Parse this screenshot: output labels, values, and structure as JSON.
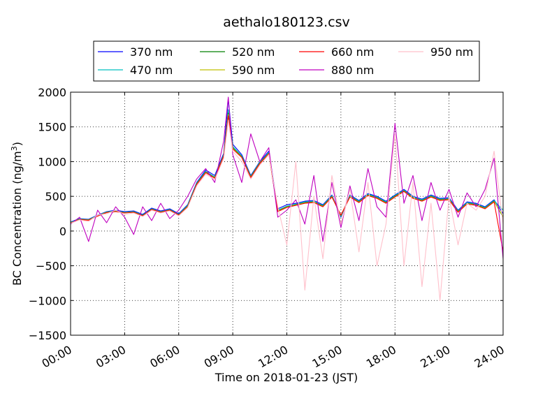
{
  "chart_data": {
    "type": "line",
    "title": "aethalo180123.csv",
    "xlabel": "Time on 2018-01-23 (JST)",
    "ylabel_main": "BC Concentration (ng/m",
    "ylabel_sup": "3",
    "ylabel_close": ")",
    "xlim_hours": [
      0,
      24
    ],
    "ylim": [
      -1500,
      2000
    ],
    "grid": true,
    "legend_position": "top-center, outside plot",
    "xticks": [
      {
        "hour": 0,
        "label": "00:00"
      },
      {
        "hour": 3,
        "label": "03:00"
      },
      {
        "hour": 6,
        "label": "06:00"
      },
      {
        "hour": 9,
        "label": "09:00"
      },
      {
        "hour": 12,
        "label": "12:00"
      },
      {
        "hour": 15,
        "label": "15:00"
      },
      {
        "hour": 18,
        "label": "18:00"
      },
      {
        "hour": 21,
        "label": "21:00"
      },
      {
        "hour": 24,
        "label": "24:00"
      }
    ],
    "yticks": [
      {
        "value": 2000,
        "label": "2000"
      },
      {
        "value": 1500,
        "label": "1500"
      },
      {
        "value": 1000,
        "label": "1000"
      },
      {
        "value": 500,
        "label": "500"
      },
      {
        "value": 0,
        "label": "0"
      },
      {
        "value": -500,
        "label": "−500"
      },
      {
        "value": -1000,
        "label": "−1000"
      },
      {
        "value": -1500,
        "label": "−1500"
      }
    ],
    "x_hours": [
      0,
      0.5,
      1,
      1.5,
      2,
      2.5,
      3,
      3.5,
      4,
      4.5,
      5,
      5.5,
      6,
      6.5,
      7,
      7.5,
      8,
      8.5,
      8.75,
      9,
      9.5,
      10,
      10.5,
      11,
      11.5,
      12,
      12.5,
      13,
      13.5,
      14,
      14.5,
      15,
      15.5,
      16,
      16.5,
      17,
      17.5,
      18,
      18.5,
      19,
      19.5,
      20,
      20.5,
      21,
      21.5,
      22,
      22.5,
      23,
      23.5,
      24
    ],
    "series": [
      {
        "name": "370 nm",
        "color": "#0000ff",
        "values": [
          130,
          180,
          170,
          230,
          280,
          300,
          280,
          290,
          240,
          330,
          290,
          320,
          250,
          380,
          700,
          880,
          800,
          1120,
          1900,
          1250,
          1100,
          800,
          1000,
          1150,
          320,
          380,
          400,
          430,
          440,
          380,
          520,
          200,
          520,
          440,
          540,
          500,
          430,
          520,
          600,
          500,
          460,
          520,
          470,
          480,
          300,
          420,
          400,
          350,
          450,
          250
        ]
      },
      {
        "name": "470 nm",
        "color": "#00bfbf",
        "values": [
          125,
          175,
          165,
          225,
          275,
          290,
          270,
          280,
          230,
          320,
          280,
          310,
          240,
          370,
          690,
          860,
          780,
          1100,
          1750,
          1220,
          1080,
          790,
          990,
          1130,
          300,
          360,
          390,
          420,
          430,
          370,
          510,
          210,
          510,
          430,
          530,
          490,
          420,
          510,
          590,
          490,
          450,
          510,
          460,
          470,
          290,
          410,
          390,
          340,
          440,
          300
        ]
      },
      {
        "name": "520 nm",
        "color": "#008000",
        "values": [
          120,
          170,
          160,
          220,
          270,
          285,
          265,
          275,
          225,
          315,
          275,
          305,
          235,
          360,
          680,
          850,
          770,
          1090,
          1700,
          1200,
          1070,
          780,
          980,
          1120,
          290,
          350,
          380,
          410,
          420,
          360,
          500,
          220,
          500,
          420,
          520,
          480,
          410,
          500,
          580,
          480,
          440,
          500,
          450,
          460,
          280,
          400,
          380,
          330,
          430,
          200
        ]
      },
      {
        "name": "590 nm",
        "color": "#bfbf00",
        "values": [
          118,
          168,
          158,
          218,
          268,
          282,
          262,
          272,
          222,
          312,
          272,
          302,
          232,
          356,
          675,
          845,
          765,
          1085,
          1680,
          1190,
          1065,
          775,
          975,
          1115,
          285,
          345,
          375,
          405,
          415,
          355,
          495,
          225,
          495,
          415,
          515,
          475,
          405,
          495,
          575,
          475,
          435,
          495,
          445,
          455,
          275,
          395,
          375,
          325,
          425,
          210
        ]
      },
      {
        "name": "660 nm",
        "color": "#ff0000",
        "values": [
          115,
          165,
          155,
          215,
          265,
          280,
          260,
          270,
          220,
          310,
          270,
          300,
          230,
          350,
          670,
          840,
          760,
          1080,
          1660,
          1180,
          1060,
          770,
          970,
          1110,
          280,
          340,
          370,
          400,
          410,
          350,
          490,
          230,
          490,
          410,
          510,
          470,
          400,
          490,
          570,
          470,
          430,
          490,
          440,
          450,
          270,
          390,
          370,
          320,
          420,
          -300
        ]
      },
      {
        "name": "880 nm",
        "color": "#bf00bf",
        "values": [
          100,
          200,
          -150,
          300,
          120,
          350,
          200,
          -50,
          350,
          150,
          400,
          180,
          300,
          500,
          750,
          900,
          700,
          1300,
          1930,
          1100,
          700,
          1400,
          1000,
          1200,
          200,
          300,
          450,
          100,
          800,
          -150,
          700,
          50,
          650,
          150,
          900,
          350,
          200,
          1550,
          400,
          800,
          150,
          700,
          300,
          600,
          200,
          550,
          350,
          600,
          1050,
          -400
        ]
      },
      {
        "name": "950 nm",
        "color": "#ffc0cb",
        "values": [
          110,
          160,
          140,
          230,
          250,
          300,
          240,
          260,
          210,
          300,
          260,
          290,
          220,
          340,
          650,
          820,
          740,
          1050,
          1600,
          1150,
          1000,
          750,
          950,
          1100,
          350,
          -200,
          1000,
          -850,
          500,
          -400,
          800,
          100,
          600,
          -300,
          700,
          -500,
          100,
          1400,
          -500,
          700,
          -800,
          400,
          -1000,
          500,
          -200,
          400,
          300,
          500,
          1150,
          100
        ]
      }
    ]
  }
}
